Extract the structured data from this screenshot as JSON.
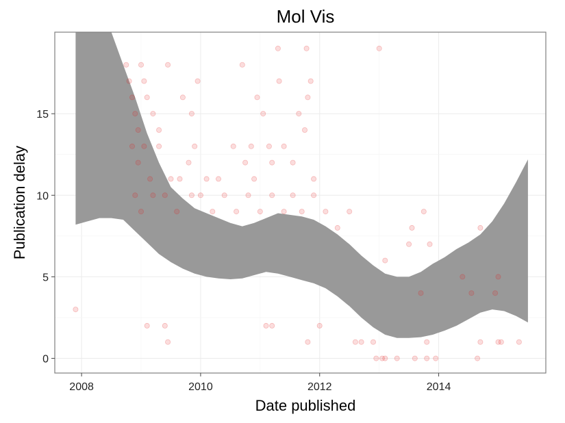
{
  "chart_data": {
    "type": "scatter",
    "title": "Mol Vis",
    "xlabel": "Date published",
    "ylabel": "Publication delay",
    "xlim": [
      2007.55,
      2015.8
    ],
    "ylim": [
      -0.9,
      20.0
    ],
    "x_ticks": [
      2008,
      2010,
      2012,
      2014
    ],
    "x_tick_labels": [
      "2008",
      "2010",
      "2012",
      "2014"
    ],
    "y_ticks": [
      0,
      5,
      10,
      15
    ],
    "y_tick_labels": [
      "0",
      "5",
      "10",
      "15"
    ],
    "grid": true,
    "point_color": "#e31a1c",
    "point_alpha": 0.15,
    "band_color": "#999999",
    "series": [
      {
        "values": [
          [
            2007.9,
            3
          ],
          [
            2008.75,
            18
          ],
          [
            2008.8,
            17
          ],
          [
            2008.85,
            16
          ],
          [
            2008.9,
            15
          ],
          [
            2008.95,
            14
          ],
          [
            2009.0,
            18
          ],
          [
            2009.05,
            17
          ],
          [
            2009.1,
            16
          ],
          [
            2009.2,
            15
          ],
          [
            2009.3,
            14
          ],
          [
            2009.45,
            18
          ],
          [
            2009.7,
            16
          ],
          [
            2009.85,
            15
          ],
          [
            2009.95,
            17
          ],
          [
            2010.1,
            11
          ],
          [
            2010.3,
            11
          ],
          [
            2010.55,
            13
          ],
          [
            2010.7,
            18
          ],
          [
            2010.75,
            12
          ],
          [
            2010.85,
            13
          ],
          [
            2010.9,
            11
          ],
          [
            2010.95,
            16
          ],
          [
            2011.05,
            15
          ],
          [
            2011.15,
            13
          ],
          [
            2011.2,
            12
          ],
          [
            2011.3,
            19
          ],
          [
            2011.32,
            17
          ],
          [
            2011.4,
            13
          ],
          [
            2011.55,
            12
          ],
          [
            2011.65,
            15
          ],
          [
            2011.75,
            14
          ],
          [
            2011.8,
            16
          ],
          [
            2011.85,
            17
          ],
          [
            2011.9,
            11
          ],
          [
            2011.78,
            19
          ],
          [
            2009.1,
            2
          ],
          [
            2009.4,
            2
          ],
          [
            2009.45,
            1
          ],
          [
            2011.8,
            1
          ],
          [
            2011.1,
            2
          ],
          [
            2011.2,
            2
          ],
          [
            2012.0,
            2
          ],
          [
            2012.6,
            1
          ],
          [
            2012.7,
            1
          ],
          [
            2012.9,
            1
          ],
          [
            2012.95,
            0
          ],
          [
            2013.05,
            0
          ],
          [
            2013.1,
            0
          ],
          [
            2013.3,
            0
          ],
          [
            2013.6,
            0
          ],
          [
            2013.8,
            0
          ],
          [
            2013.95,
            0
          ],
          [
            2013.1,
            6
          ],
          [
            2013.0,
            19
          ],
          [
            2013.5,
            7
          ],
          [
            2013.55,
            8
          ],
          [
            2013.75,
            9
          ],
          [
            2013.85,
            7
          ],
          [
            2014.7,
            8
          ],
          [
            2014.65,
            0
          ],
          [
            2014.7,
            1
          ],
          [
            2015.0,
            1
          ],
          [
            2015.35,
            1
          ],
          [
            2014.4,
            5
          ],
          [
            2014.55,
            4
          ],
          [
            2014.95,
            4
          ],
          [
            2015.0,
            5
          ],
          [
            2015.05,
            1
          ],
          [
            2013.7,
            4
          ],
          [
            2013.8,
            1
          ],
          [
            2008.85,
            13
          ],
          [
            2008.95,
            12
          ],
          [
            2009.05,
            13
          ],
          [
            2009.15,
            11
          ],
          [
            2009.3,
            13
          ],
          [
            2009.5,
            11
          ],
          [
            2009.65,
            11
          ],
          [
            2009.8,
            12
          ],
          [
            2009.9,
            13
          ],
          [
            2008.9,
            10
          ],
          [
            2009.0,
            9
          ],
          [
            2009.2,
            10
          ],
          [
            2009.4,
            10
          ],
          [
            2009.6,
            9
          ],
          [
            2009.85,
            10
          ],
          [
            2010.0,
            10
          ],
          [
            2010.2,
            9
          ],
          [
            2010.4,
            10
          ],
          [
            2010.6,
            9
          ],
          [
            2010.8,
            10
          ],
          [
            2011.0,
            9
          ],
          [
            2011.2,
            10
          ],
          [
            2011.4,
            9
          ],
          [
            2011.55,
            10
          ],
          [
            2011.7,
            9
          ],
          [
            2011.9,
            10
          ],
          [
            2012.1,
            9
          ],
          [
            2012.3,
            8
          ],
          [
            2012.5,
            9
          ]
        ]
      }
    ],
    "band": {
      "x": [
        2007.9,
        2008.1,
        2008.3,
        2008.5,
        2008.7,
        2008.9,
        2009.1,
        2009.3,
        2009.5,
        2009.7,
        2009.9,
        2010.1,
        2010.3,
        2010.5,
        2010.7,
        2010.9,
        2011.1,
        2011.3,
        2011.5,
        2011.7,
        2011.9,
        2012.1,
        2012.3,
        2012.5,
        2012.7,
        2012.9,
        2013.1,
        2013.3,
        2013.5,
        2013.7,
        2013.9,
        2014.1,
        2014.3,
        2014.5,
        2014.7,
        2014.9,
        2015.1,
        2015.3,
        2015.5
      ],
      "upper": [
        25.0,
        22.0,
        21.0,
        20.0,
        18.0,
        16.0,
        13.8,
        12.0,
        10.5,
        9.8,
        9.2,
        8.9,
        8.6,
        8.3,
        8.1,
        8.3,
        8.6,
        8.9,
        8.8,
        8.7,
        8.5,
        8.1,
        7.6,
        7.0,
        6.3,
        5.7,
        5.2,
        5.0,
        5.0,
        5.3,
        5.8,
        6.2,
        6.7,
        7.1,
        7.6,
        8.4,
        9.5,
        10.8,
        12.2
      ],
      "lower": [
        8.2,
        8.4,
        8.6,
        8.6,
        8.5,
        7.8,
        7.1,
        6.4,
        5.9,
        5.5,
        5.2,
        5.0,
        4.9,
        4.85,
        4.9,
        5.1,
        5.3,
        5.2,
        5.0,
        4.8,
        4.6,
        4.3,
        3.8,
        3.2,
        2.5,
        1.9,
        1.45,
        1.25,
        1.25,
        1.3,
        1.45,
        1.7,
        2.0,
        2.4,
        2.8,
        3.0,
        2.9,
        2.6,
        2.2
      ]
    }
  }
}
